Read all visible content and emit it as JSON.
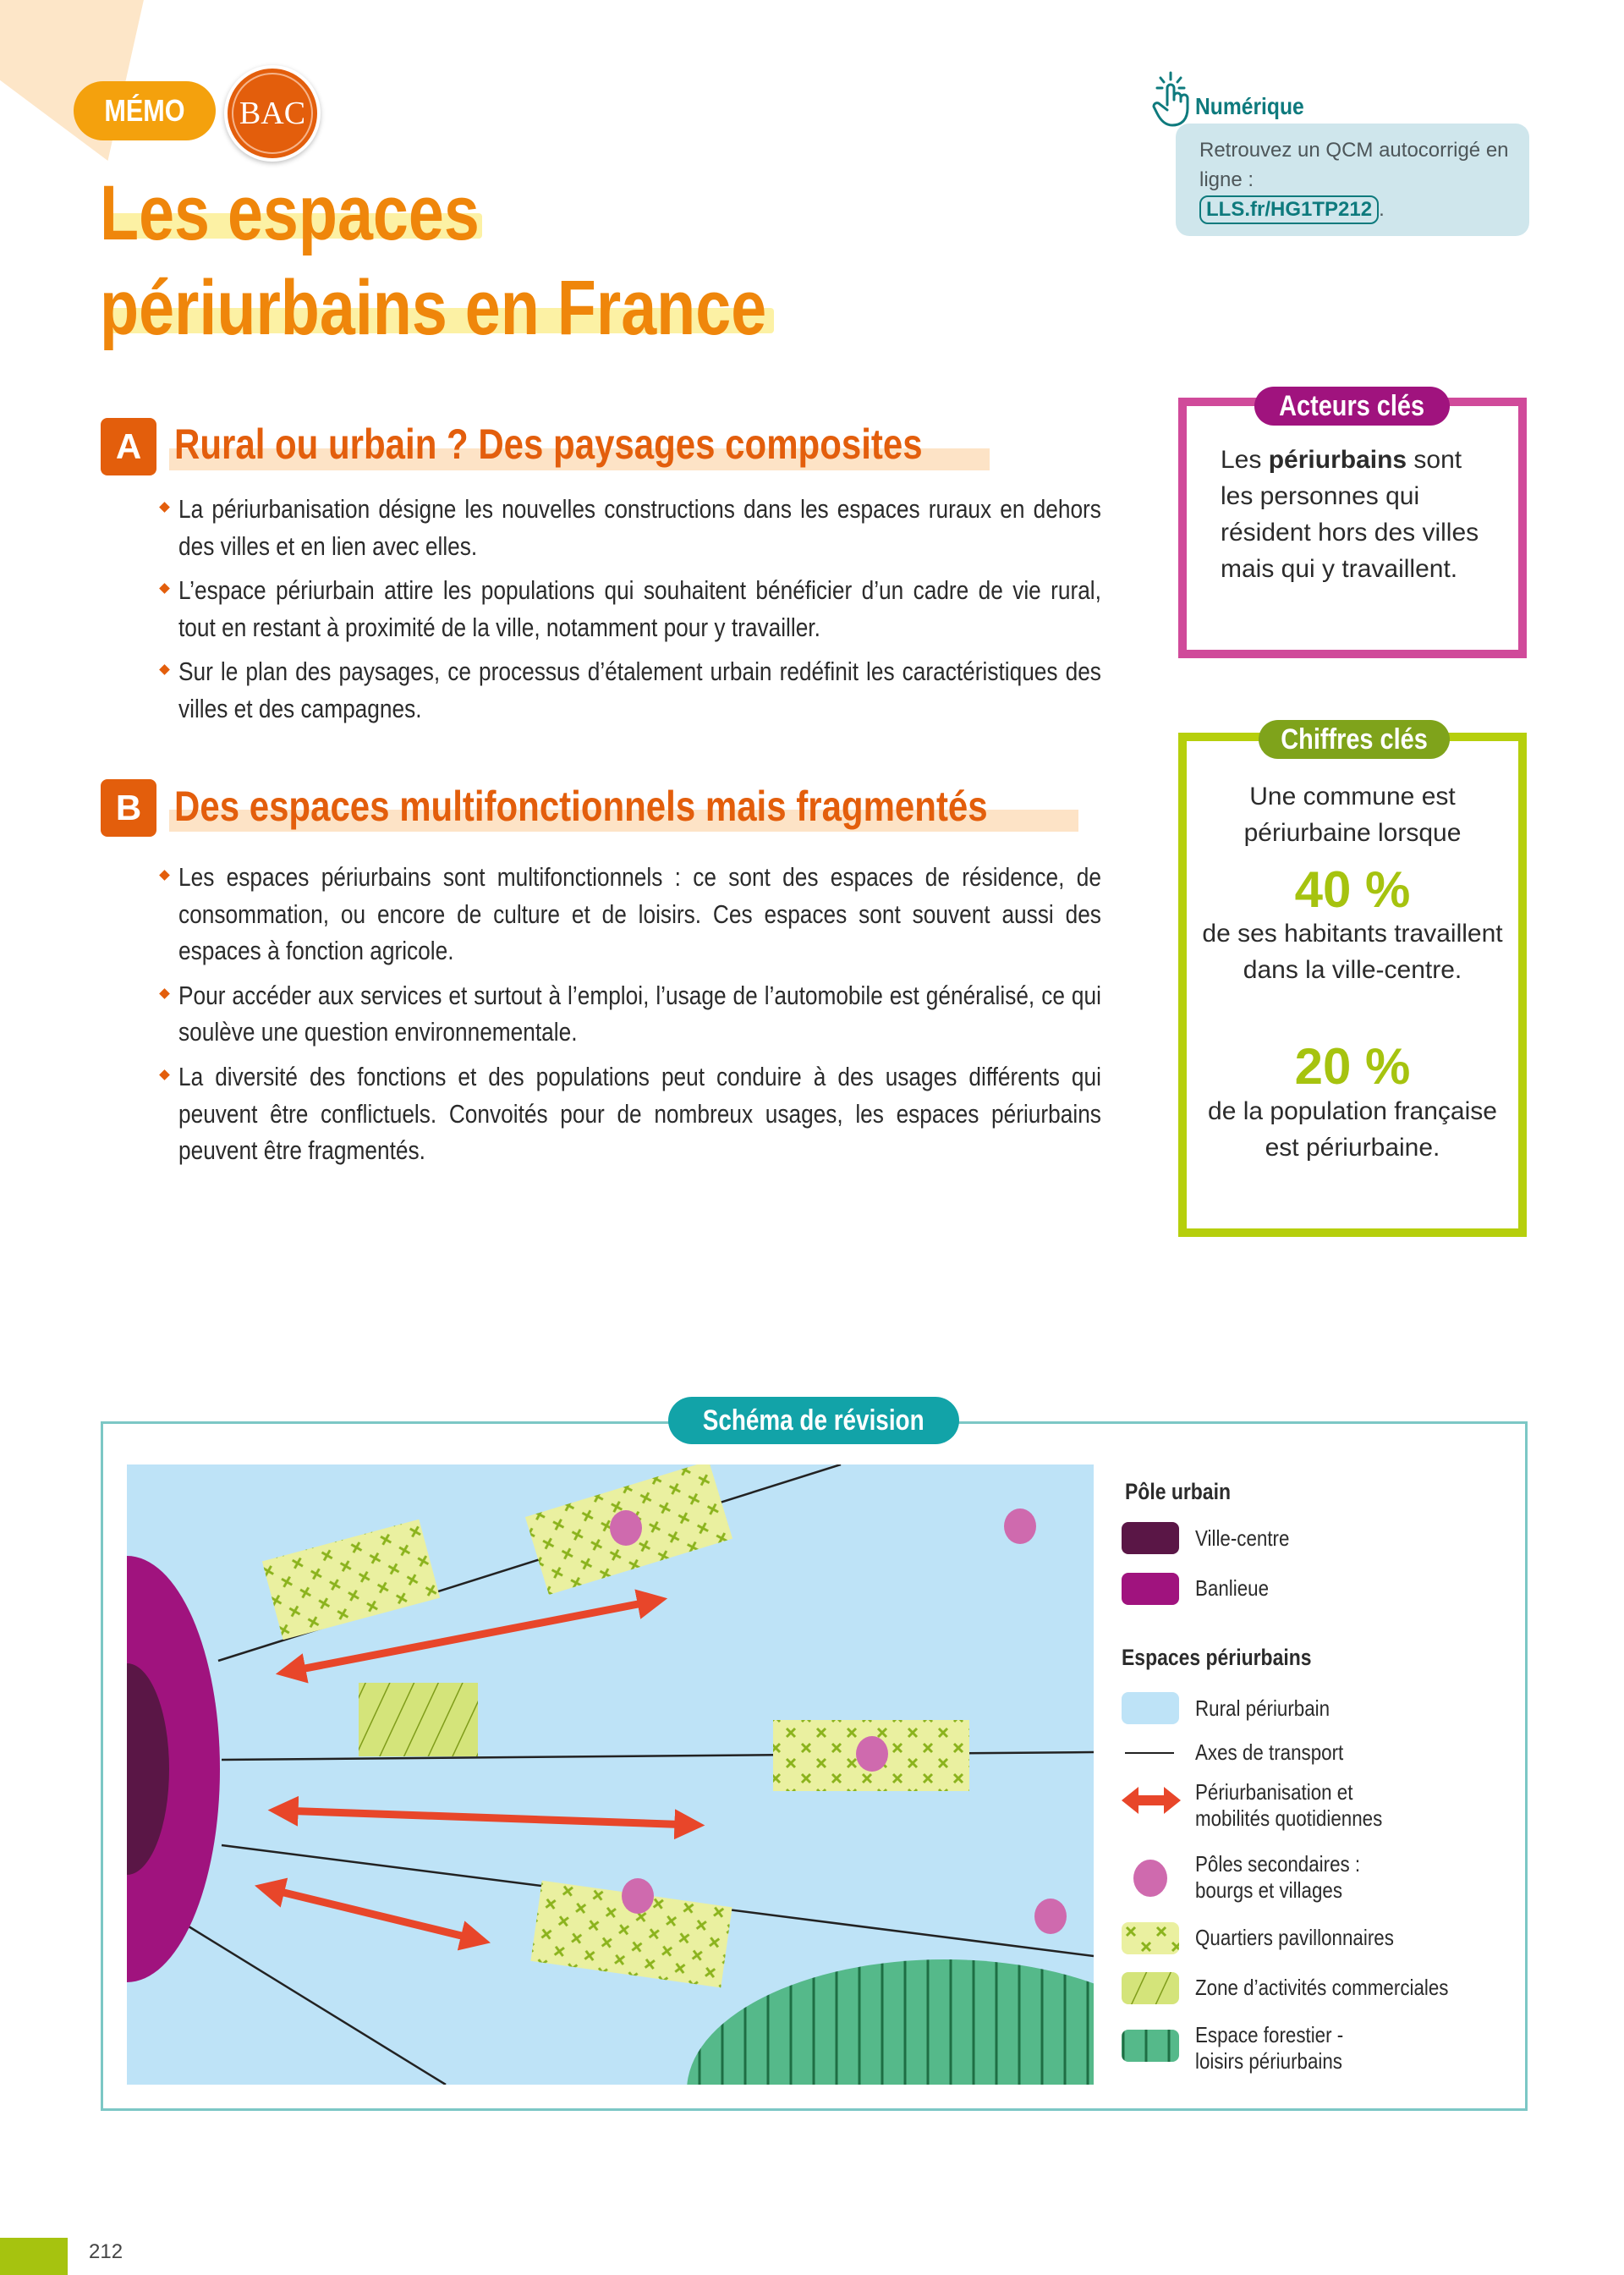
{
  "colors": {
    "orange": "#ef860b",
    "section_orange": "#e35e0c",
    "teal": "#12a3a8",
    "magenta": "#a0137e",
    "pink_frame": "#d04a9a",
    "lime": "#a6c30f",
    "olive": "#7fa31b",
    "ville_centre": "#5a1646",
    "banlieue": "#a0137e",
    "rural": "#bee3f7",
    "arrow": "#e8462a",
    "pole_secondaire": "#cf6aae",
    "forest": "#55b98a"
  },
  "header": {
    "memo": "MÉMO",
    "bac": "BAC",
    "title_lines": [
      "Les espaces",
      "périurbains en France"
    ]
  },
  "numerique": {
    "icon": "hand-pointer-icon",
    "label": "Numérique",
    "text": "Retrouvez un QCM autocorrigé en ligne :",
    "link": "LLS.fr/HG1TP212",
    "trailing": "."
  },
  "sections": [
    {
      "letter": "A",
      "heading": "Rural ou urbain ? Des paysages composites",
      "bullets": [
        "La périurbanisation désigne les nouvelles constructions dans les espaces ruraux en dehors des villes et en lien avec elles.",
        "L’espace périurbain attire les populations qui souhaitent bénéficier d’un cadre de vie rural, tout en restant à proximité de la ville, notamment pour y travailler.",
        "Sur le plan des paysages, ce processus d’étalement urbain redéfinit les caractéristiques des villes et des campagnes."
      ]
    },
    {
      "letter": "B",
      "heading": "Des espaces multifonctionnels mais fragmentés",
      "bullets": [
        "Les espaces périurbains sont multifonctionnels : ce sont des espaces de rési­dence, de consommation, ou encore de culture et de loisirs. Ces espaces sont souvent aussi des espaces à fonction agricole.",
        "Pour accéder aux services et surtout à l’emploi, l’usage de l’automobile est généralisé, ce qui soulève une question environnementale.",
        "La diversité des fonctions et des populations peut conduire à des usages différents qui peuvent être conflictuels. Convoités pour de nombreux usages, les espaces périurbains peuvent être fragmentés."
      ]
    }
  ],
  "acteurs": {
    "title": "Acteurs clés",
    "text_before": "Les ",
    "bold": "périurbains",
    "text_after": " sont les personnes qui résident hors des villes mais qui y travaillent."
  },
  "chiffres": {
    "title": "Chiffres clés",
    "intro": "Une commune est périurbaine lorsque",
    "stats": [
      {
        "value": "40 %",
        "text": "de ses habitants travaillent dans la ville-centre."
      },
      {
        "value": "20 %",
        "text": "de la population française est périurbaine."
      }
    ]
  },
  "schema": {
    "title": "Schéma de révision",
    "legend": {
      "group1": "Pôle urbain",
      "ville_centre": "Ville-centre",
      "banlieue": "Banlieue",
      "group2": "Espaces périurbains",
      "rural": "Rural périurbain",
      "axes": "Axes de transport",
      "periurbanisation_1": "Périurbanisation et",
      "periurbanisation_2": "mobilités quotidiennes",
      "poles_1": "Pôles secondaires :",
      "poles_2": "bourgs et villages",
      "quartiers": "Quartiers pavillonnaires",
      "zone": "Zone d’activités commerciales",
      "forestier_1": "Espace forestier -",
      "forestier_2": "loisirs périurbains"
    }
  },
  "page_number": "212"
}
